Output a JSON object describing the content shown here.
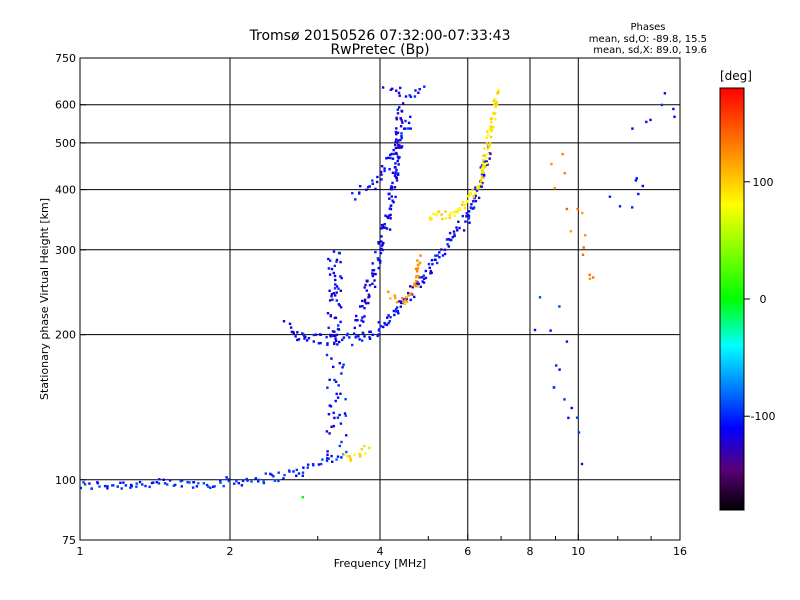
{
  "chart_data": {
    "type": "scatter",
    "title": "Tromsø 20150526 07:32:00-07:33:43",
    "subtitle": "RwPretec (Bp)",
    "stats": {
      "heading": "Phases",
      "line1": "mean, sd,O: -89.8, 15.5",
      "line2": "mean, sd,X:  89.0, 19.6"
    },
    "xlabel": "Frequency [MHz]",
    "ylabel": "Stationary phase Virtual Height [km]",
    "xscale": "log",
    "yscale": "log",
    "xlim": [
      1,
      16
    ],
    "ylim": [
      75,
      750
    ],
    "xticks": [
      1,
      2,
      4,
      6,
      8,
      10,
      16
    ],
    "xtick_labels": [
      "1",
      "2",
      "4",
      "6",
      "8",
      "10",
      "16"
    ],
    "yticks": [
      75,
      100,
      200,
      300,
      400,
      500,
      600,
      750
    ],
    "ytick_labels": [
      "75",
      "100",
      "200",
      "300",
      "400",
      "500",
      "600",
      "750"
    ],
    "grid_x": [
      2,
      4,
      6,
      8,
      10
    ],
    "grid_y": [
      100,
      200,
      300,
      400,
      500,
      600
    ],
    "colorbar": {
      "label": "[deg]",
      "range": [
        -180,
        180
      ],
      "ticks": [
        100,
        0,
        -100
      ],
      "tick_labels": [
        "100",
        "0",
        "-100"
      ],
      "stops": [
        {
          "v": -180,
          "c": "#000000"
        },
        {
          "v": -145,
          "c": "#5a007a"
        },
        {
          "v": -110,
          "c": "#0000ff"
        },
        {
          "v": -40,
          "c": "#00ffff"
        },
        {
          "v": 0,
          "c": "#00ff00"
        },
        {
          "v": 80,
          "c": "#ffff00"
        },
        {
          "v": 130,
          "c": "#ff8000"
        },
        {
          "v": 180,
          "c": "#ff0000"
        }
      ]
    },
    "series": [
      {
        "name": "ground-trace",
        "phase": -100,
        "spread": 0.01,
        "density": 4,
        "segments": [
          [
            1.0,
            97,
            1.3,
            98
          ],
          [
            1.3,
            98,
            1.7,
            98
          ],
          [
            1.7,
            98,
            2.0,
            99
          ],
          [
            2.0,
            99,
            2.4,
            101
          ],
          [
            2.4,
            101,
            2.8,
            104
          ],
          [
            2.8,
            104,
            3.1,
            110
          ],
          [
            3.1,
            110,
            3.4,
            113
          ]
        ]
      },
      {
        "name": "ground-yellow",
        "phase": 90,
        "spread": 0.012,
        "density": 5,
        "segments": [
          [
            3.4,
            111,
            3.8,
            116
          ]
        ]
      },
      {
        "name": "spike-3.2",
        "phase": -110,
        "spread": 0.02,
        "density": 2,
        "segments": [
          [
            3.2,
            115,
            3.2,
            185
          ]
        ]
      },
      {
        "name": "spike-3.4",
        "phase": -105,
        "spread": 0.02,
        "density": 2,
        "segments": [
          [
            3.35,
            115,
            3.35,
            175
          ]
        ]
      },
      {
        "name": "lower-layer",
        "phase": -110,
        "spread": 0.012,
        "density": 6,
        "segments": [
          [
            2.6,
            208,
            2.8,
            197
          ],
          [
            2.8,
            197,
            3.3,
            195
          ],
          [
            3.3,
            195,
            3.6,
            196
          ],
          [
            3.6,
            196,
            4.0,
            206
          ],
          [
            4.0,
            206,
            4.4,
            230
          ],
          [
            4.4,
            230,
            5.0,
            270
          ],
          [
            5.0,
            270,
            5.6,
            320
          ],
          [
            5.6,
            320,
            6.0,
            350
          ],
          [
            6.0,
            350,
            6.4,
            420
          ],
          [
            6.4,
            420,
            6.6,
            480
          ]
        ]
      },
      {
        "name": "vertical-band-3.2",
        "phase": -110,
        "spread": 0.015,
        "density": 3,
        "segments": [
          [
            3.2,
            200,
            3.2,
            290
          ],
          [
            3.3,
            200,
            3.3,
            300
          ]
        ]
      },
      {
        "name": "middle-trace",
        "phase": -115,
        "spread": 0.015,
        "density": 6,
        "segments": [
          [
            3.6,
            210,
            3.9,
            270
          ],
          [
            3.9,
            270,
            4.1,
            330
          ],
          [
            4.1,
            330,
            4.3,
            420
          ],
          [
            4.3,
            420,
            4.4,
            600
          ]
        ]
      },
      {
        "name": "upper-trace",
        "phase": -110,
        "spread": 0.012,
        "density": 4,
        "segments": [
          [
            3.5,
            390,
            3.9,
            410
          ],
          [
            3.9,
            410,
            4.2,
            460
          ],
          [
            4.2,
            460,
            4.6,
            560
          ],
          [
            4.1,
            640,
            4.9,
            640
          ]
        ]
      },
      {
        "name": "x-mode-low",
        "phase": 120,
        "spread": 0.01,
        "density": 5,
        "segments": [
          [
            4.2,
            240,
            4.5,
            235
          ],
          [
            4.5,
            235,
            4.7,
            250
          ],
          [
            4.7,
            250,
            4.8,
            290
          ]
        ]
      },
      {
        "name": "x-mode-high",
        "phase": 90,
        "spread": 0.01,
        "density": 6,
        "segments": [
          [
            5.0,
            350,
            5.7,
            360
          ],
          [
            5.7,
            360,
            6.3,
            400
          ],
          [
            6.3,
            400,
            6.6,
            500
          ],
          [
            6.6,
            500,
            6.9,
            640
          ]
        ]
      },
      {
        "name": "mixed-far",
        "phase": 130,
        "spread": 0.03,
        "density": 1,
        "segments": [
          [
            9.0,
            470,
            11.0,
            250
          ]
        ]
      },
      {
        "name": "scattered-noise",
        "phase": -105,
        "spread": 0.05,
        "density": 1,
        "segments": [
          [
            8.5,
            230,
            10.0,
            115
          ],
          [
            12.0,
            350,
            15.0,
            650
          ]
        ]
      },
      {
        "name": "green-dot",
        "phase": 10,
        "spread": 0.0,
        "density": 1,
        "segments": [
          [
            2.8,
            92,
            2.8,
            92
          ]
        ]
      }
    ]
  }
}
